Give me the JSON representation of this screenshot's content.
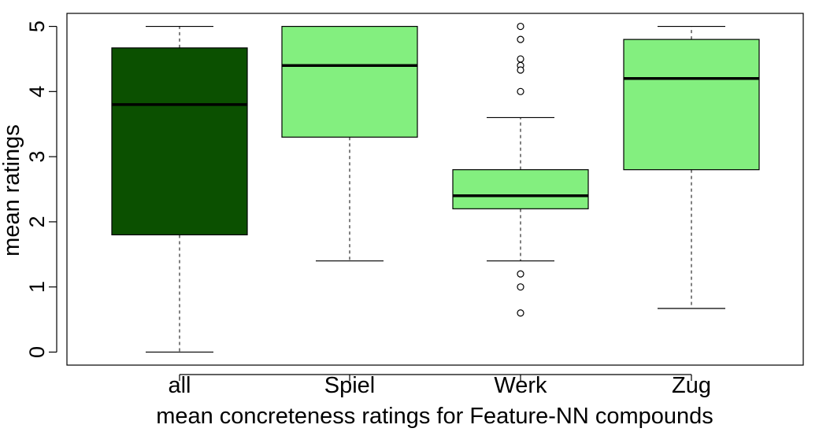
{
  "chart_data": {
    "type": "boxplot",
    "title": "",
    "xlabel": "mean concreteness ratings for Feature-NN compounds",
    "ylabel": "mean ratings",
    "ylim": [
      -0.2,
      5.2
    ],
    "yticks": [
      "0",
      "1",
      "2",
      "3",
      "4",
      "5"
    ],
    "grid": false,
    "legend": "none",
    "categories": [
      "all",
      "Spiel",
      "Werk",
      "Zug"
    ],
    "boxes": [
      {
        "category": "all",
        "whisker_low": 0.0,
        "q1": 1.8,
        "median": 3.8,
        "q3": 4.67,
        "whisker_high": 5.0,
        "outliers": [],
        "fill": "#0b5000"
      },
      {
        "category": "Spiel",
        "whisker_low": 1.4,
        "q1": 3.3,
        "median": 4.4,
        "q3": 5.0,
        "whisker_high": 5.0,
        "outliers": [],
        "fill": "#83ef7f"
      },
      {
        "category": "Werk",
        "whisker_low": 1.4,
        "q1": 2.2,
        "median": 2.4,
        "q3": 2.8,
        "whisker_high": 3.6,
        "outliers": [
          5.0,
          4.8,
          4.5,
          4.4,
          4.33,
          4.0,
          1.2,
          1.0,
          0.6
        ],
        "fill": "#83ef7f"
      },
      {
        "category": "Zug",
        "whisker_low": 0.67,
        "q1": 2.8,
        "median": 4.2,
        "q3": 4.8,
        "whisker_high": 5.0,
        "outliers": [],
        "fill": "#83ef7f"
      }
    ]
  }
}
